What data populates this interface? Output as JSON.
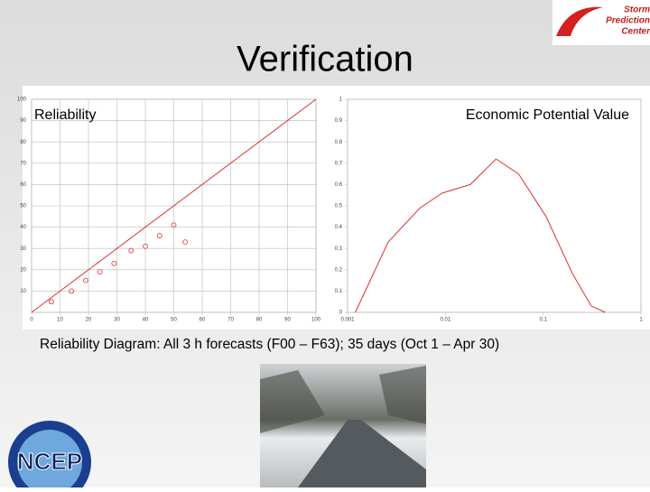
{
  "slide": {
    "title": "Verification",
    "caption": "Reliability Diagram: All 3 h forecasts (F00 – F63);   35 days (Oct 1 – Apr 30)",
    "logo_top": [
      "Storm",
      "Prediction",
      "Center"
    ],
    "logo_bottom": "NCEP"
  },
  "chart_data": [
    {
      "type": "scatter",
      "title": "Reliability",
      "xlim": [
        0,
        100
      ],
      "xticks": [
        0,
        10,
        20,
        30,
        40,
        50,
        60,
        70,
        80,
        90,
        100
      ],
      "ylim": [
        0,
        100
      ],
      "yticks": [
        10,
        20,
        30,
        40,
        50,
        60,
        70,
        80,
        90,
        100
      ],
      "grid": true,
      "series": [
        {
          "style": "line",
          "color": "#e03030",
          "x": [
            0,
            100
          ],
          "values": [
            0,
            100
          ]
        },
        {
          "style": "markers",
          "color": "#e03030",
          "x": [
            7,
            14,
            19,
            24,
            29,
            35,
            40,
            45,
            50,
            54
          ],
          "values": [
            5,
            10,
            15,
            19,
            23,
            29,
            31,
            36,
            41,
            33
          ]
        }
      ]
    },
    {
      "type": "line",
      "title": "Economic Potential Value",
      "xscale": "log",
      "xlim": [
        0.001,
        1
      ],
      "xticks": [
        0.001,
        0.01,
        0.1,
        1
      ],
      "ylim": [
        0,
        1
      ],
      "yticks": [
        0,
        0.1,
        0.2,
        0.3,
        0.4,
        0.5,
        0.6,
        0.7,
        0.8,
        0.9,
        1
      ],
      "grid": false,
      "series": [
        {
          "color": "#e03030",
          "x": [
            0.0012,
            0.0026,
            0.0055,
            0.0093,
            0.018,
            0.033,
            0.056,
            0.107,
            0.2,
            0.31,
            0.43
          ],
          "values": [
            0,
            0.33,
            0.49,
            0.56,
            0.6,
            0.72,
            0.65,
            0.45,
            0.18,
            0.03,
            0
          ]
        }
      ]
    }
  ]
}
